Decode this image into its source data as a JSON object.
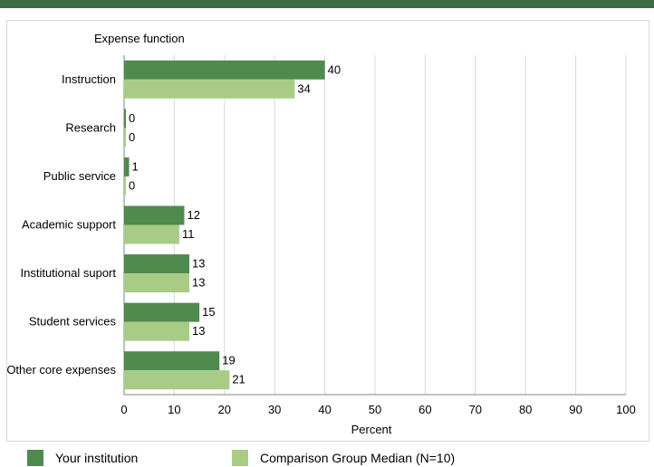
{
  "chart_data": {
    "type": "bar",
    "orientation": "horizontal",
    "title": "",
    "category_axis_title": "Expense function",
    "xlabel": "Percent",
    "xlim": [
      0,
      100
    ],
    "xticks": [
      0,
      10,
      20,
      30,
      40,
      50,
      60,
      70,
      80,
      90,
      100
    ],
    "grid": true,
    "categories": [
      "Instruction",
      "Research",
      "Public service",
      "Academic support",
      "Institutional suport",
      "Student services",
      "Other core expenses"
    ],
    "series": [
      {
        "name": "Your institution",
        "color": "#4f8a4f",
        "values": [
          40,
          0,
          1,
          12,
          13,
          15,
          19
        ]
      },
      {
        "name": "Comparison Group Median (N=10)",
        "color": "#a8cc85",
        "values": [
          34,
          0,
          0,
          11,
          13,
          13,
          21
        ]
      }
    ],
    "legend_position": "bottom"
  }
}
